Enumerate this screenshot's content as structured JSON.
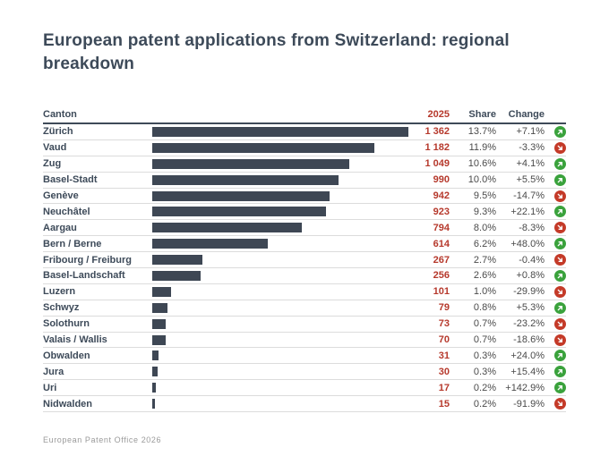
{
  "title": "European patent applications from Switzerland: regional breakdown",
  "footer": "European Patent Office 2026",
  "colors": {
    "bar": "#3e4754",
    "accent_red": "#b6392c",
    "trend_up_green": "#3aa23c",
    "trend_down_red": "#c43a28",
    "heading_slate": "#3d4a59"
  },
  "icons": {
    "up": "trend-up-icon",
    "down": "trend-down-icon"
  },
  "table": {
    "columns": {
      "canton": "Canton",
      "year": "2025",
      "share": "Share",
      "change": "Change"
    },
    "rows": [
      {
        "canton": "Zürich",
        "value": "1 362",
        "share": "13.7%",
        "change": "+7.1%",
        "trend": "up"
      },
      {
        "canton": "Vaud",
        "value": "1 182",
        "share": "11.9%",
        "change": "-3.3%",
        "trend": "down"
      },
      {
        "canton": "Zug",
        "value": "1 049",
        "share": "10.6%",
        "change": "+4.1%",
        "trend": "up"
      },
      {
        "canton": "Basel-Stadt",
        "value": "990",
        "share": "10.0%",
        "change": "+5.5%",
        "trend": "up"
      },
      {
        "canton": "Genève",
        "value": "942",
        "share": "9.5%",
        "change": "-14.7%",
        "trend": "down"
      },
      {
        "canton": "Neuchâtel",
        "value": "923",
        "share": "9.3%",
        "change": "+22.1%",
        "trend": "up"
      },
      {
        "canton": "Aargau",
        "value": "794",
        "share": "8.0%",
        "change": "-8.3%",
        "trend": "down"
      },
      {
        "canton": "Bern / Berne",
        "value": "614",
        "share": "6.2%",
        "change": "+48.0%",
        "trend": "up"
      },
      {
        "canton": "Fribourg / Freiburg",
        "value": "267",
        "share": "2.7%",
        "change": "-0.4%",
        "trend": "down"
      },
      {
        "canton": "Basel-Landschaft",
        "value": "256",
        "share": "2.6%",
        "change": "+0.8%",
        "trend": "up"
      },
      {
        "canton": "Luzern",
        "value": "101",
        "share": "1.0%",
        "change": "-29.9%",
        "trend": "down"
      },
      {
        "canton": "Schwyz",
        "value": "79",
        "share": "0.8%",
        "change": "+5.3%",
        "trend": "up"
      },
      {
        "canton": "Solothurn",
        "value": "73",
        "share": "0.7%",
        "change": "-23.2%",
        "trend": "down"
      },
      {
        "canton": "Valais / Wallis",
        "value": "70",
        "share": "0.7%",
        "change": "-18.6%",
        "trend": "down"
      },
      {
        "canton": "Obwalden",
        "value": "31",
        "share": "0.3%",
        "change": "+24.0%",
        "trend": "up"
      },
      {
        "canton": "Jura",
        "value": "30",
        "share": "0.3%",
        "change": "+15.4%",
        "trend": "up"
      },
      {
        "canton": "Uri",
        "value": "17",
        "share": "0.2%",
        "change": "+142.9%",
        "trend": "up"
      },
      {
        "canton": "Nidwalden",
        "value": "15",
        "share": "0.2%",
        "change": "-91.9%",
        "trend": "down"
      }
    ]
  },
  "chart_data": {
    "type": "bar",
    "orientation": "horizontal",
    "title": "European patent applications from Switzerland: regional breakdown",
    "categories": [
      "Zürich",
      "Vaud",
      "Zug",
      "Basel-Stadt",
      "Genève",
      "Neuchâtel",
      "Aargau",
      "Bern / Berne",
      "Fribourg / Freiburg",
      "Basel-Landschaft",
      "Luzern",
      "Schwyz",
      "Solothurn",
      "Valais / Wallis",
      "Obwalden",
      "Jura",
      "Uri",
      "Nidwalden"
    ],
    "series": [
      {
        "name": "2025 applications",
        "values": [
          1362,
          1182,
          1049,
          990,
          942,
          923,
          794,
          614,
          267,
          256,
          101,
          79,
          73,
          70,
          31,
          30,
          17,
          15
        ]
      },
      {
        "name": "Share %",
        "values": [
          13.7,
          11.9,
          10.6,
          10.0,
          9.5,
          9.3,
          8.0,
          6.2,
          2.7,
          2.6,
          1.0,
          0.8,
          0.7,
          0.7,
          0.3,
          0.3,
          0.2,
          0.2
        ]
      },
      {
        "name": "Change %",
        "values": [
          7.1,
          -3.3,
          4.1,
          5.5,
          -14.7,
          22.1,
          -8.3,
          48.0,
          -0.4,
          0.8,
          -29.9,
          5.3,
          -23.2,
          -18.6,
          24.0,
          15.4,
          142.9,
          -91.9
        ]
      }
    ],
    "xlabel": "",
    "ylabel": "",
    "xlim": [
      0,
      1362
    ],
    "grid": false,
    "legend": false
  }
}
